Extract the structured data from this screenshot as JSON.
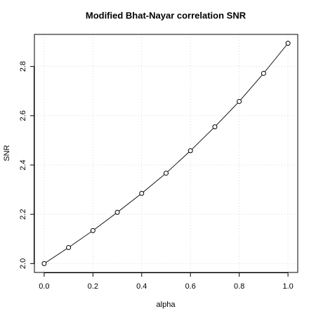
{
  "chart_data": {
    "type": "line",
    "title": "Modified Bhat-Nayar correlation SNR",
    "x_label": "alpha",
    "y_label": "SNR",
    "x": [
      0.0,
      0.1,
      0.2,
      0.3,
      0.4,
      0.5,
      0.6,
      0.7,
      0.8,
      0.9,
      1.0
    ],
    "series": [
      {
        "name": "SNR",
        "color": "#000000",
        "values": [
          2.0,
          2.065,
          2.134,
          2.208,
          2.285,
          2.367,
          2.458,
          2.555,
          2.658,
          2.772,
          2.894
        ]
      }
    ],
    "xlim": [
      -0.04,
      1.04
    ],
    "xticks": [
      {
        "value": 0,
        "label": "0.0"
      },
      {
        "value": 0.2,
        "label": "0.2"
      },
      {
        "value": 0.4,
        "label": "0.4"
      },
      {
        "value": 0.6,
        "label": "0.6"
      },
      {
        "value": 0.8,
        "label": "0.8"
      },
      {
        "value": 1,
        "label": "1.0"
      }
    ],
    "ylim": [
      1.964,
      2.93
    ],
    "yticks": [
      {
        "value": 2,
        "label": "2.0"
      },
      2.2,
      2.4,
      2.6,
      2.8
    ],
    "grid": true
  }
}
